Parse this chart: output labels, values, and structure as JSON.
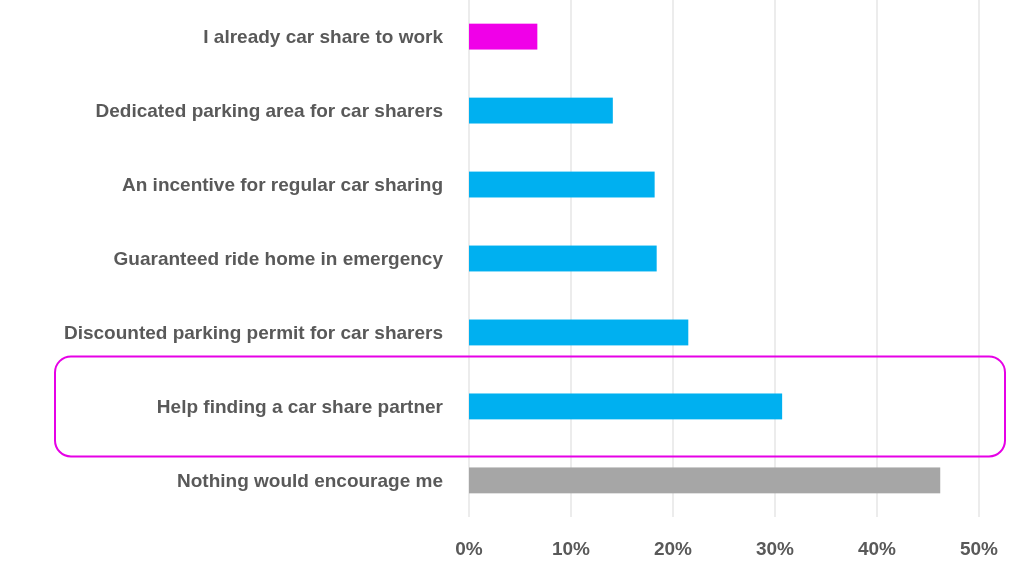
{
  "chart_data": {
    "type": "bar",
    "orientation": "horizontal",
    "categories": [
      "I already car share to work",
      "Dedicated parking area for car sharers",
      "An incentive for regular car sharing",
      "Guaranteed ride home in emergency",
      "Discounted parking permit for car sharers",
      "Help finding a car share partner",
      "Nothing would encourage me"
    ],
    "values": [
      6.7,
      14.1,
      18.2,
      18.4,
      21.5,
      30.7,
      46.2
    ],
    "colors": [
      "#f000e8",
      "#00b0f0",
      "#00b0f0",
      "#00b0f0",
      "#00b0f0",
      "#00b0f0",
      "#a6a6a6"
    ],
    "xlim": [
      0,
      50
    ],
    "xticks": [
      {
        "value": 0,
        "label": "0%"
      },
      {
        "value": 10,
        "label": "10%"
      },
      {
        "value": 20,
        "label": "20%"
      },
      {
        "value": 30,
        "label": "30%"
      },
      {
        "value": 40,
        "label": "40%"
      },
      {
        "value": 50,
        "label": "50%"
      }
    ],
    "grid": "x"
  }
}
